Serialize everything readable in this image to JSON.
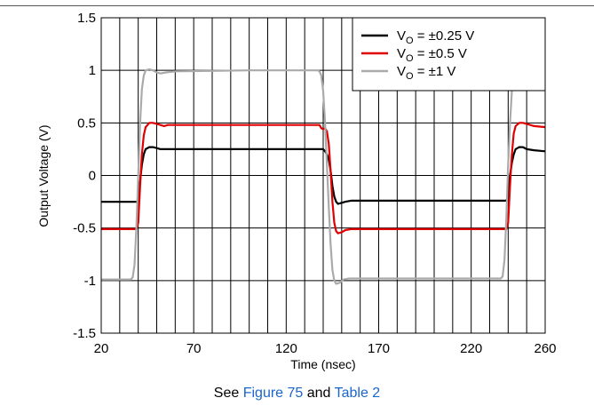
{
  "caption": {
    "prefix": "See ",
    "figure_link": "Figure 75",
    "middle": " and ",
    "table_link": "Table 2",
    "link_color": "#1a66cc"
  },
  "chart_data": {
    "type": "line",
    "title": "",
    "xlabel": "Time (nsec)",
    "ylabel": "Output Voltage (V)",
    "xlim": [
      20,
      260
    ],
    "ylim": [
      -1.5,
      1.5
    ],
    "x_ticks": [
      20,
      70,
      120,
      170,
      220,
      260
    ],
    "x_tick_labels": [
      "20",
      "70",
      "120",
      "170",
      "220",
      "260"
    ],
    "x_grid_step": 10,
    "y_ticks": [
      -1.5,
      -1,
      -0.5,
      0,
      0.5,
      1,
      1.5
    ],
    "y_tick_labels": [
      "-1.5",
      "-1",
      "-0.5",
      "0",
      "0.5",
      "1",
      "1.5"
    ],
    "y_grid_step": 0.5,
    "grid": true,
    "legend": {
      "position": "top-right"
    },
    "series": [
      {
        "name": "VO = ±0.25 V",
        "label_main": "V",
        "label_sub": "O",
        "label_rest": " = ±0.25 V",
        "color": "#000000",
        "points": [
          [
            20,
            -0.25
          ],
          [
            39,
            -0.25
          ],
          [
            40,
            -0.24
          ],
          [
            41,
            -0.05
          ],
          [
            42,
            0.1
          ],
          [
            43,
            0.2
          ],
          [
            44,
            0.25
          ],
          [
            46,
            0.27
          ],
          [
            48,
            0.27
          ],
          [
            50,
            0.26
          ],
          [
            52,
            0.25
          ],
          [
            54,
            0.25
          ],
          [
            58,
            0.25
          ],
          [
            62,
            0.25
          ],
          [
            100,
            0.25
          ],
          [
            138,
            0.25
          ],
          [
            140,
            0.25
          ],
          [
            141,
            0.23
          ],
          [
            142,
            0.2
          ],
          [
            143,
            0.15
          ],
          [
            144,
            0.05
          ],
          [
            145,
            -0.1
          ],
          [
            146,
            -0.2
          ],
          [
            147,
            -0.25
          ],
          [
            148,
            -0.27
          ],
          [
            150,
            -0.26
          ],
          [
            152,
            -0.25
          ],
          [
            155,
            -0.24
          ],
          [
            158,
            -0.24
          ],
          [
            162,
            -0.24
          ],
          [
            200,
            -0.24
          ],
          [
            239,
            -0.24
          ],
          [
            240,
            -0.2
          ],
          [
            241,
            0.0
          ],
          [
            242,
            0.12
          ],
          [
            243,
            0.2
          ],
          [
            244,
            0.25
          ],
          [
            246,
            0.27
          ],
          [
            248,
            0.27
          ],
          [
            250,
            0.25
          ],
          [
            254,
            0.24
          ],
          [
            260,
            0.23
          ]
        ]
      },
      {
        "name": "VO = ±0.5 V",
        "label_main": "V",
        "label_sub": "O",
        "label_rest": " = ±0.5 V",
        "color": "#e00000",
        "points": [
          [
            20,
            -0.51
          ],
          [
            39,
            -0.51
          ],
          [
            40,
            -0.45
          ],
          [
            41,
            -0.1
          ],
          [
            42,
            0.2
          ],
          [
            43,
            0.38
          ],
          [
            44,
            0.46
          ],
          [
            46,
            0.5
          ],
          [
            48,
            0.5
          ],
          [
            50,
            0.49
          ],
          [
            52,
            0.48
          ],
          [
            54,
            0.47
          ],
          [
            56,
            0.48
          ],
          [
            60,
            0.48
          ],
          [
            100,
            0.48
          ],
          [
            135,
            0.48
          ],
          [
            138,
            0.48
          ],
          [
            139,
            0.45
          ],
          [
            140,
            0.44
          ],
          [
            141,
            0.45
          ],
          [
            142,
            0.42
          ],
          [
            143,
            0.3
          ],
          [
            144,
            0.05
          ],
          [
            145,
            -0.25
          ],
          [
            146,
            -0.45
          ],
          [
            147,
            -0.53
          ],
          [
            148,
            -0.55
          ],
          [
            150,
            -0.54
          ],
          [
            152,
            -0.52
          ],
          [
            155,
            -0.51
          ],
          [
            160,
            -0.51
          ],
          [
            200,
            -0.51
          ],
          [
            239,
            -0.51
          ],
          [
            240,
            -0.45
          ],
          [
            241,
            -0.1
          ],
          [
            242,
            0.2
          ],
          [
            243,
            0.4
          ],
          [
            244,
            0.47
          ],
          [
            246,
            0.5
          ],
          [
            248,
            0.5
          ],
          [
            250,
            0.49
          ],
          [
            254,
            0.47
          ],
          [
            260,
            0.46
          ]
        ]
      },
      {
        "name": "VO = ±1 V",
        "label_main": "V",
        "label_sub": "O",
        "label_rest": " = ±1 V",
        "color": "#aaaaaa",
        "points": [
          [
            20,
            -0.99
          ],
          [
            36,
            -0.99
          ],
          [
            37,
            -0.97
          ],
          [
            38,
            -0.85
          ],
          [
            39,
            -0.5
          ],
          [
            40,
            0.0
          ],
          [
            41,
            0.5
          ],
          [
            42,
            0.82
          ],
          [
            43,
            0.95
          ],
          [
            44,
            1.0
          ],
          [
            46,
            1.01
          ],
          [
            48,
            1.0
          ],
          [
            50,
            0.98
          ],
          [
            52,
            0.97
          ],
          [
            55,
            0.98
          ],
          [
            60,
            0.99
          ],
          [
            100,
            1.0
          ],
          [
            135,
            1.0
          ],
          [
            137,
            1.0
          ],
          [
            138,
            0.99
          ],
          [
            139,
            0.95
          ],
          [
            140,
            0.8
          ],
          [
            141,
            0.5
          ],
          [
            142,
            0.1
          ],
          [
            143,
            -0.3
          ],
          [
            144,
            -0.65
          ],
          [
            145,
            -0.9
          ],
          [
            146,
            -1.0
          ],
          [
            147,
            -1.03
          ],
          [
            149,
            -1.02
          ],
          [
            151,
            -0.99
          ],
          [
            154,
            -0.98
          ],
          [
            158,
            -0.98
          ],
          [
            200,
            -0.98
          ],
          [
            236,
            -0.98
          ],
          [
            237,
            -0.96
          ],
          [
            238,
            -0.8
          ],
          [
            239,
            -0.4
          ],
          [
            240,
            0.1
          ],
          [
            241,
            0.5
          ],
          [
            242,
            0.8
          ],
          [
            243,
            0.95
          ],
          [
            244,
            1.0
          ],
          [
            246,
            1.02
          ],
          [
            248,
            1.01
          ],
          [
            250,
            0.99
          ],
          [
            254,
            0.97
          ],
          [
            260,
            0.96
          ]
        ]
      }
    ]
  }
}
